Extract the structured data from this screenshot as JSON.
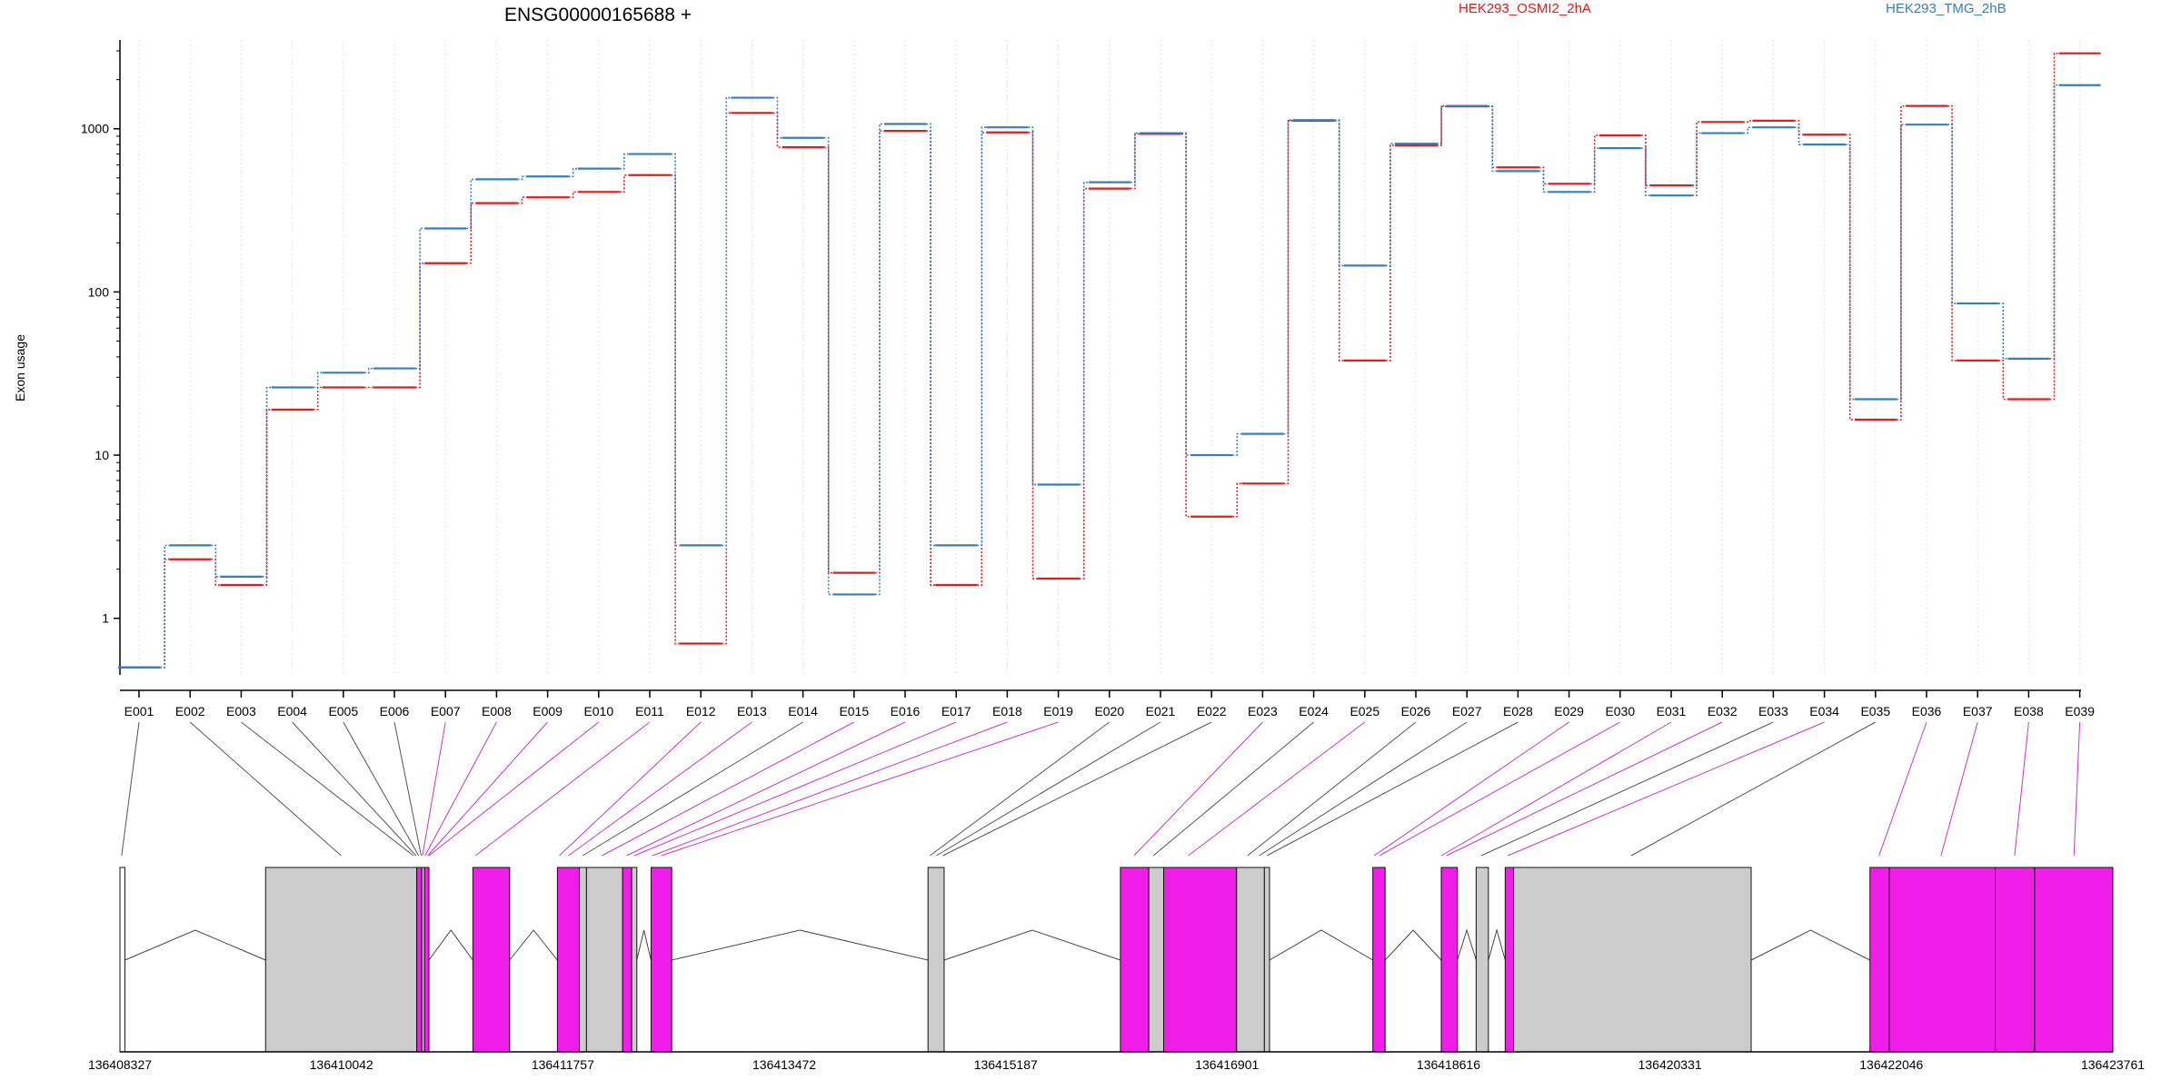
{
  "chart_data": {
    "type": "line",
    "title": "ENSG00000165688 +",
    "ylabel": "Exon usage",
    "yscale": "log",
    "ylim": [
      0.45,
      3500
    ],
    "yticks": [
      1,
      10,
      100,
      1000
    ],
    "ytick_labels": [
      "1",
      "10",
      "100",
      "1000"
    ],
    "grid": "vertical dotted guide lines at each exon",
    "legend_placement": "top",
    "categories": [
      "E001",
      "E002",
      "E003",
      "E004",
      "E005",
      "E006",
      "E007",
      "E008",
      "E009",
      "E010",
      "E011",
      "E012",
      "E013",
      "E014",
      "E015",
      "E016",
      "E017",
      "E018",
      "E019",
      "E020",
      "E021",
      "E022",
      "E023",
      "E024",
      "E025",
      "E026",
      "E027",
      "E028",
      "E029",
      "E030",
      "E031",
      "E032",
      "E033",
      "E034",
      "E035",
      "E036",
      "E037",
      "E038",
      "E039"
    ],
    "series": [
      {
        "name": "HEK293_OSMI2_2hA",
        "color": "#e41a1c",
        "values": [
          0.5,
          2.3,
          1.6,
          19,
          26,
          26,
          150,
          350,
          380,
          410,
          520,
          0.7,
          1250,
          770,
          1.9,
          970,
          1.6,
          950,
          1.75,
          430,
          930,
          4.2,
          6.7,
          1120,
          38,
          790,
          1370,
          580,
          460,
          910,
          450,
          1100,
          1120,
          920,
          16.5,
          1380,
          38,
          22,
          2900
        ]
      },
      {
        "name": "HEK293_TMG_2hB",
        "color": "#377eb8",
        "values": [
          0.5,
          2.8,
          1.8,
          26,
          32,
          34,
          245,
          490,
          510,
          570,
          700,
          2.8,
          1550,
          880,
          1.4,
          1070,
          2.8,
          1020,
          6.6,
          470,
          940,
          10,
          13.5,
          1130,
          145,
          810,
          1380,
          550,
          410,
          760,
          390,
          940,
          1020,
          800,
          22,
          1060,
          85,
          39,
          1850
        ]
      }
    ],
    "gene_model": {
      "coordinate_ticks": [
        "136408327",
        "136410042",
        "136411757",
        "136413472",
        "136415187",
        "136416901",
        "136418616",
        "136420331",
        "136422046",
        "136423761"
      ],
      "exon_highlight_color": "#f01ee8",
      "exon_default_color": "#cccccc",
      "blocks": [
        {
          "start": 136408327,
          "end": 136408365,
          "color": "#ffffff"
        },
        {
          "start": 136409455,
          "end": 136410625,
          "color": "#cccccc"
        },
        {
          "start": 136410625,
          "end": 136410665,
          "color": "#f01ee8"
        },
        {
          "start": 136410665,
          "end": 136410685,
          "color": "#cccccc"
        },
        {
          "start": 136410685,
          "end": 136410720,
          "color": "#f01ee8"
        },
        {
          "start": 136411060,
          "end": 136411345,
          "color": "#f01ee8"
        },
        {
          "start": 136411715,
          "end": 136411885,
          "color": "#f01ee8"
        },
        {
          "start": 136411885,
          "end": 136411940,
          "color": "#cccccc"
        },
        {
          "start": 136411940,
          "end": 136412220,
          "color": "#cccccc"
        },
        {
          "start": 136412220,
          "end": 136412290,
          "color": "#f01ee8"
        },
        {
          "start": 136412290,
          "end": 136412330,
          "color": "#cccccc"
        },
        {
          "start": 136412440,
          "end": 136412600,
          "color": "#f01ee8"
        },
        {
          "start": 136414585,
          "end": 136414710,
          "color": "#cccccc"
        },
        {
          "start": 136416075,
          "end": 136416295,
          "color": "#f01ee8"
        },
        {
          "start": 136416295,
          "end": 136416410,
          "color": "#cccccc"
        },
        {
          "start": 136416410,
          "end": 136416975,
          "color": "#f01ee8"
        },
        {
          "start": 136416975,
          "end": 136417190,
          "color": "#cccccc"
        },
        {
          "start": 136417190,
          "end": 136417230,
          "color": "#cccccc"
        },
        {
          "start": 136418030,
          "end": 136418125,
          "color": "#f01ee8"
        },
        {
          "start": 136418560,
          "end": 136418685,
          "color": "#f01ee8"
        },
        {
          "start": 136418830,
          "end": 136418925,
          "color": "#cccccc"
        },
        {
          "start": 136419055,
          "end": 136419120,
          "color": "#f01ee8"
        },
        {
          "start": 136419120,
          "end": 136420960,
          "color": "#cccccc"
        },
        {
          "start": 136421880,
          "end": 136422030,
          "color": "#f01ee8"
        },
        {
          "start": 136422030,
          "end": 136422850,
          "color": "#f01ee8"
        },
        {
          "start": 136422850,
          "end": 136423155,
          "color": "#f01ee8"
        },
        {
          "start": 136423155,
          "end": 136423761,
          "color": "#f01ee8"
        }
      ],
      "introns": [
        {
          "start": 136408365,
          "end": 136409455
        },
        {
          "start": 136410720,
          "end": 136411060
        },
        {
          "start": 136411345,
          "end": 136411715
        },
        {
          "start": 136412330,
          "end": 136412440
        },
        {
          "start": 136412600,
          "end": 136414585
        },
        {
          "start": 136414710,
          "end": 136416075
        },
        {
          "start": 136417230,
          "end": 136418030
        },
        {
          "start": 136418125,
          "end": 136418560
        },
        {
          "start": 136418685,
          "end": 136418830
        },
        {
          "start": 136418925,
          "end": 136419055
        },
        {
          "start": 136420960,
          "end": 136421880
        }
      ],
      "exon_connectors": [
        {
          "exon": "E001",
          "target": 136408340,
          "color": "#555555"
        },
        {
          "exon": "E002",
          "target": 136410040,
          "color": "#555555"
        },
        {
          "exon": "E003",
          "target": 136410600,
          "color": "#555555"
        },
        {
          "exon": "E004",
          "target": 136410620,
          "color": "#555555"
        },
        {
          "exon": "E005",
          "target": 136410640,
          "color": "#555555"
        },
        {
          "exon": "E006",
          "target": 136410660,
          "color": "#555555"
        },
        {
          "exon": "E007",
          "target": 136410670,
          "color": "#cc33cc"
        },
        {
          "exon": "E008",
          "target": 136410690,
          "color": "#cc33cc"
        },
        {
          "exon": "E009",
          "target": 136410710,
          "color": "#cc33cc"
        },
        {
          "exon": "E010",
          "target": 136410720,
          "color": "#cc33cc"
        },
        {
          "exon": "E011",
          "target": 136411080,
          "color": "#cc33cc"
        },
        {
          "exon": "E012",
          "target": 136411730,
          "color": "#cc33cc"
        },
        {
          "exon": "E013",
          "target": 136411800,
          "color": "#cc33cc"
        },
        {
          "exon": "E014",
          "target": 136411910,
          "color": "#555555"
        },
        {
          "exon": "E015",
          "target": 136412060,
          "color": "#cc33cc"
        },
        {
          "exon": "E016",
          "target": 136412250,
          "color": "#cc33cc"
        },
        {
          "exon": "E017",
          "target": 136412310,
          "color": "#cc33cc"
        },
        {
          "exon": "E018",
          "target": 136412450,
          "color": "#cc33cc"
        },
        {
          "exon": "E019",
          "target": 136412520,
          "color": "#cc33cc"
        },
        {
          "exon": "E020",
          "target": 136414600,
          "color": "#555555"
        },
        {
          "exon": "E021",
          "target": 136414650,
          "color": "#555555"
        },
        {
          "exon": "E022",
          "target": 136414700,
          "color": "#555555"
        },
        {
          "exon": "E023",
          "target": 136416180,
          "color": "#cc33cc"
        },
        {
          "exon": "E024",
          "target": 136416330,
          "color": "#555555"
        },
        {
          "exon": "E025",
          "target": 136416600,
          "color": "#cc33cc"
        },
        {
          "exon": "E026",
          "target": 136417060,
          "color": "#555555"
        },
        {
          "exon": "E027",
          "target": 136417150,
          "color": "#555555"
        },
        {
          "exon": "E028",
          "target": 136417210,
          "color": "#555555"
        },
        {
          "exon": "E029",
          "target": 136418040,
          "color": "#cc33cc"
        },
        {
          "exon": "E030",
          "target": 136418080,
          "color": "#cc33cc"
        },
        {
          "exon": "E031",
          "target": 136418560,
          "color": "#cc33cc"
        },
        {
          "exon": "E032",
          "target": 136418600,
          "color": "#cc33cc"
        },
        {
          "exon": "E033",
          "target": 136418870,
          "color": "#555555"
        },
        {
          "exon": "E034",
          "target": 136419075,
          "color": "#cc33cc"
        },
        {
          "exon": "E035",
          "target": 136420030,
          "color": "#555555"
        },
        {
          "exon": "E036",
          "target": 136421950,
          "color": "#cc33cc"
        },
        {
          "exon": "E037",
          "target": 136422430,
          "color": "#cc33cc"
        },
        {
          "exon": "E038",
          "target": 136423000,
          "color": "#cc33cc"
        },
        {
          "exon": "E039",
          "target": 136423460,
          "color": "#cc33cc"
        }
      ]
    }
  }
}
